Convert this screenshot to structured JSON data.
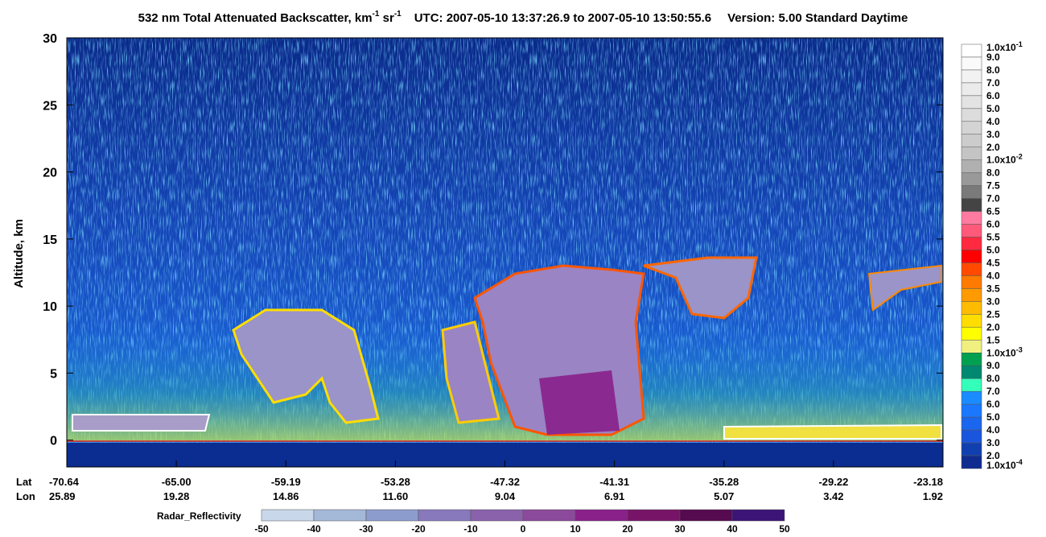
{
  "chart_data": {
    "type": "curtain",
    "title": {
      "main": "532 nm Total Attenuated Backscatter, km",
      "sup1": "-1",
      "unit2": " sr",
      "sup2": "-1",
      "utc": "UTC:  2007-05-10 13:37:26.9  to  2007-05-10 13:50:55.6",
      "version": "Version: 5.00  Standard  Daytime"
    },
    "y_label": "Altitude, km",
    "ylim": [
      -2,
      30
    ],
    "yticks": [
      0,
      5,
      10,
      15,
      20,
      25,
      30
    ],
    "lat_title": "Lat",
    "lon_title": "Lon",
    "lat": [
      "-70.64",
      "-65.00",
      "-59.19",
      "-53.28",
      "-47.32",
      "-41.31",
      "-35.28",
      "-29.22",
      "-23.18"
    ],
    "lon": [
      "25.89",
      "19.28",
      "14.86",
      "11.60",
      "9.04",
      "6.91",
      "5.07",
      "3.42",
      "1.92"
    ],
    "colorbar": {
      "labels": [
        {
          "base": "1.0x10",
          "sup": "-1"
        },
        "9.0",
        "8.0",
        "7.0",
        "6.0",
        "5.0",
        "4.0",
        "3.0",
        "2.0",
        {
          "base": "1.0x10",
          "sup": "-2"
        },
        "8.0",
        "7.5",
        "7.0",
        "6.5",
        "6.0",
        "5.5",
        "5.0",
        "4.5",
        "4.0",
        "3.5",
        "3.0",
        "2.5",
        "2.0",
        "1.5",
        {
          "base": "1.0x10",
          "sup": "-3"
        },
        "9.0",
        "8.0",
        "7.0",
        "6.0",
        "5.0",
        "4.0",
        "3.0",
        "2.0",
        {
          "base": "1.0x10",
          "sup": "-4"
        }
      ],
      "colors": [
        "#ffffff",
        "#fafafa",
        "#f2f2f2",
        "#ebebeb",
        "#e3e3e3",
        "#dcdcdc",
        "#d4d4d4",
        "#cccccc",
        "#c4c4c4",
        "#b0b0b0",
        "#999999",
        "#7a7a7a",
        "#444444",
        "#ff7aa0",
        "#ff5a7a",
        "#ff2a40",
        "#ff0000",
        "#ff4a00",
        "#ff7a00",
        "#ff9a00",
        "#ffbb00",
        "#ffdd00",
        "#ffff00",
        "#f0f080",
        "#00a050",
        "#008870",
        "#33ffbb",
        "#1a8cff",
        "#1a78ff",
        "#1a66ee",
        "#1a55dd",
        "#1040b0",
        "#102c90"
      ]
    },
    "radar": {
      "label": "Radar_Reflectivity",
      "ticks": [
        -50,
        -40,
        -30,
        -20,
        -10,
        0,
        10,
        20,
        30,
        40,
        50
      ],
      "colors": [
        "#c8d8ea",
        "#a4b8d8",
        "#8c9ccc",
        "#8878bc",
        "#8a62ac",
        "#8c4a9c",
        "#8a208a",
        "#781468",
        "#560a50",
        "#3c1478"
      ]
    }
  }
}
